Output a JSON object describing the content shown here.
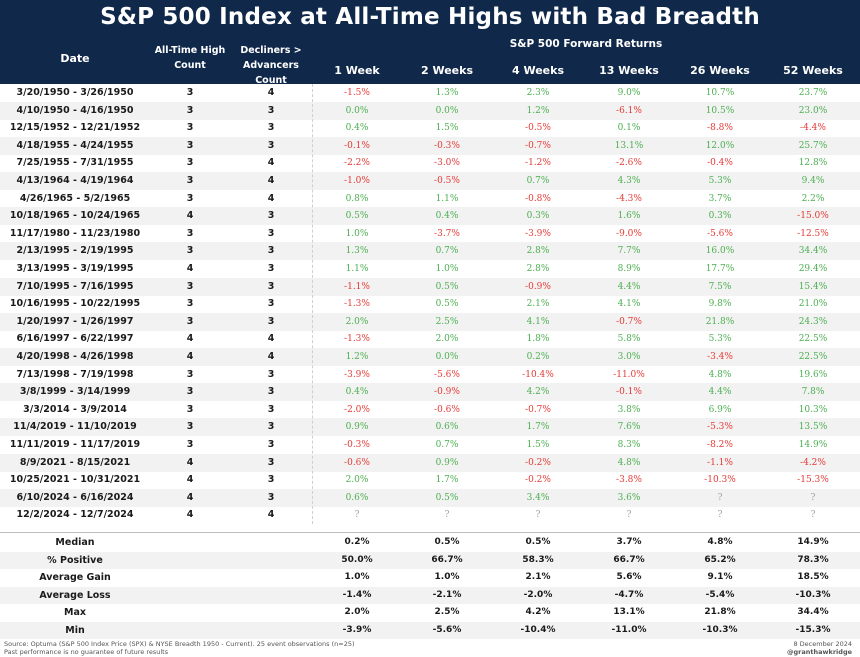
{
  "title": "S&P 500 Index at All-Time Highs with Bad Breadth",
  "headers": {
    "date": "Date",
    "ath_count": "All-Time High Count",
    "dec_adv": "Decliners > Advancers Count",
    "group": "S&P 500 Forward Returns",
    "returns": [
      "1 Week",
      "2 Weeks",
      "4 Weeks",
      "13 Weeks",
      "26 Weeks",
      "52 Weeks"
    ]
  },
  "rows": [
    {
      "date": "3/20/1950 - 3/26/1950",
      "ath": "3",
      "dec": "4",
      "r": [
        "-1.5%",
        "1.3%",
        "2.3%",
        "9.0%",
        "10.7%",
        "23.7%"
      ]
    },
    {
      "date": "4/10/1950 - 4/16/1950",
      "ath": "3",
      "dec": "3",
      "r": [
        "0.0%",
        "0.0%",
        "1.2%",
        "-6.1%",
        "10.5%",
        "23.0%"
      ]
    },
    {
      "date": "12/15/1952 - 12/21/1952",
      "ath": "3",
      "dec": "3",
      "r": [
        "0.4%",
        "1.5%",
        "-0.5%",
        "0.1%",
        "-8.8%",
        "-4.4%"
      ]
    },
    {
      "date": "4/18/1955 - 4/24/1955",
      "ath": "3",
      "dec": "3",
      "r": [
        "-0.1%",
        "-0.3%",
        "-0.7%",
        "13.1%",
        "12.0%",
        "25.7%"
      ]
    },
    {
      "date": "7/25/1955 - 7/31/1955",
      "ath": "3",
      "dec": "4",
      "r": [
        "-2.2%",
        "-3.0%",
        "-1.2%",
        "-2.6%",
        "-0.4%",
        "12.8%"
      ]
    },
    {
      "date": "4/13/1964 - 4/19/1964",
      "ath": "3",
      "dec": "4",
      "r": [
        "-1.0%",
        "-0.5%",
        "0.7%",
        "4.3%",
        "5.3%",
        "9.4%"
      ]
    },
    {
      "date": "4/26/1965 - 5/2/1965",
      "ath": "3",
      "dec": "4",
      "r": [
        "0.8%",
        "1.1%",
        "-0.8%",
        "-4.3%",
        "3.7%",
        "2.2%"
      ]
    },
    {
      "date": "10/18/1965 - 10/24/1965",
      "ath": "4",
      "dec": "3",
      "r": [
        "0.5%",
        "0.4%",
        "0.3%",
        "1.6%",
        "0.3%",
        "-15.0%"
      ]
    },
    {
      "date": "11/17/1980 - 11/23/1980",
      "ath": "3",
      "dec": "3",
      "r": [
        "1.0%",
        "-3.7%",
        "-3.9%",
        "-9.0%",
        "-5.6%",
        "-12.5%"
      ]
    },
    {
      "date": "2/13/1995 - 2/19/1995",
      "ath": "3",
      "dec": "3",
      "r": [
        "1.3%",
        "0.7%",
        "2.8%",
        "7.7%",
        "16.0%",
        "34.4%"
      ]
    },
    {
      "date": "3/13/1995 - 3/19/1995",
      "ath": "4",
      "dec": "3",
      "r": [
        "1.1%",
        "1.0%",
        "2.8%",
        "8.9%",
        "17.7%",
        "29.4%"
      ]
    },
    {
      "date": "7/10/1995 - 7/16/1995",
      "ath": "3",
      "dec": "3",
      "r": [
        "-1.1%",
        "0.5%",
        "-0.9%",
        "4.4%",
        "7.5%",
        "15.4%"
      ]
    },
    {
      "date": "10/16/1995 - 10/22/1995",
      "ath": "3",
      "dec": "3",
      "r": [
        "-1.3%",
        "0.5%",
        "2.1%",
        "4.1%",
        "9.8%",
        "21.0%"
      ]
    },
    {
      "date": "1/20/1997 - 1/26/1997",
      "ath": "3",
      "dec": "3",
      "r": [
        "2.0%",
        "2.5%",
        "4.1%",
        "-0.7%",
        "21.8%",
        "24.3%"
      ]
    },
    {
      "date": "6/16/1997 - 6/22/1997",
      "ath": "4",
      "dec": "4",
      "r": [
        "-1.3%",
        "2.0%",
        "1.8%",
        "5.8%",
        "5.3%",
        "22.5%"
      ]
    },
    {
      "date": "4/20/1998 - 4/26/1998",
      "ath": "4",
      "dec": "4",
      "r": [
        "1.2%",
        "0.0%",
        "0.2%",
        "3.0%",
        "-3.4%",
        "22.5%"
      ]
    },
    {
      "date": "7/13/1998 - 7/19/1998",
      "ath": "3",
      "dec": "3",
      "r": [
        "-3.9%",
        "-5.6%",
        "-10.4%",
        "-11.0%",
        "4.8%",
        "19.6%"
      ]
    },
    {
      "date": "3/8/1999 - 3/14/1999",
      "ath": "3",
      "dec": "3",
      "r": [
        "0.4%",
        "-0.9%",
        "4.2%",
        "-0.1%",
        "4.4%",
        "7.8%"
      ]
    },
    {
      "date": "3/3/2014 - 3/9/2014",
      "ath": "3",
      "dec": "3",
      "r": [
        "-2.0%",
        "-0.6%",
        "-0.7%",
        "3.8%",
        "6.9%",
        "10.3%"
      ]
    },
    {
      "date": "11/4/2019 - 11/10/2019",
      "ath": "3",
      "dec": "3",
      "r": [
        "0.9%",
        "0.6%",
        "1.7%",
        "7.6%",
        "-5.3%",
        "13.5%"
      ]
    },
    {
      "date": "11/11/2019 - 11/17/2019",
      "ath": "3",
      "dec": "3",
      "r": [
        "-0.3%",
        "0.7%",
        "1.5%",
        "8.3%",
        "-8.2%",
        "14.9%"
      ]
    },
    {
      "date": "8/9/2021 - 8/15/2021",
      "ath": "4",
      "dec": "3",
      "r": [
        "-0.6%",
        "0.9%",
        "-0.2%",
        "4.8%",
        "-1.1%",
        "-4.2%"
      ]
    },
    {
      "date": "10/25/2021 - 10/31/2021",
      "ath": "4",
      "dec": "3",
      "r": [
        "2.0%",
        "1.7%",
        "-0.2%",
        "-3.8%",
        "-10.3%",
        "-15.3%"
      ]
    },
    {
      "date": "6/10/2024 - 6/16/2024",
      "ath": "4",
      "dec": "3",
      "r": [
        "0.6%",
        "0.5%",
        "3.4%",
        "3.6%",
        "?",
        "?"
      ]
    },
    {
      "date": "12/2/2024 - 12/7/2024",
      "ath": "4",
      "dec": "4",
      "r": [
        "?",
        "?",
        "?",
        "?",
        "?",
        "?"
      ]
    }
  ],
  "summary": [
    {
      "label": "Median",
      "v": [
        "0.2%",
        "0.5%",
        "0.5%",
        "3.7%",
        "4.8%",
        "14.9%"
      ]
    },
    {
      "label": "% Positive",
      "v": [
        "50.0%",
        "66.7%",
        "58.3%",
        "66.7%",
        "65.2%",
        "78.3%"
      ]
    },
    {
      "label": "Average Gain",
      "v": [
        "1.0%",
        "1.0%",
        "2.1%",
        "5.6%",
        "9.1%",
        "18.5%"
      ]
    },
    {
      "label": "Average Loss",
      "v": [
        "-1.4%",
        "-2.1%",
        "-2.0%",
        "-4.7%",
        "-5.4%",
        "-10.3%"
      ]
    },
    {
      "label": "Max",
      "v": [
        "2.0%",
        "2.5%",
        "4.2%",
        "13.1%",
        "21.8%",
        "34.4%"
      ]
    },
    {
      "label": "Min",
      "v": [
        "-3.9%",
        "-5.6%",
        "-10.4%",
        "-11.0%",
        "-10.3%",
        "-15.3%"
      ]
    }
  ],
  "footer": {
    "source": "Source: Optuma (S&P 500 Index Price (SPX) & NYSE Breadth 1950 - Current). 25 event observations (n=25)",
    "disclaimer": "Past performance is no guarantee of future results",
    "date": "8 December 2024",
    "handle": "@granthawkridge"
  },
  "colors": {
    "header_bg": "#10294a",
    "positive": "#4caf50",
    "negative": "#e53935",
    "unknown": "#9e9e9e",
    "zebra": "#f2f2f2"
  }
}
